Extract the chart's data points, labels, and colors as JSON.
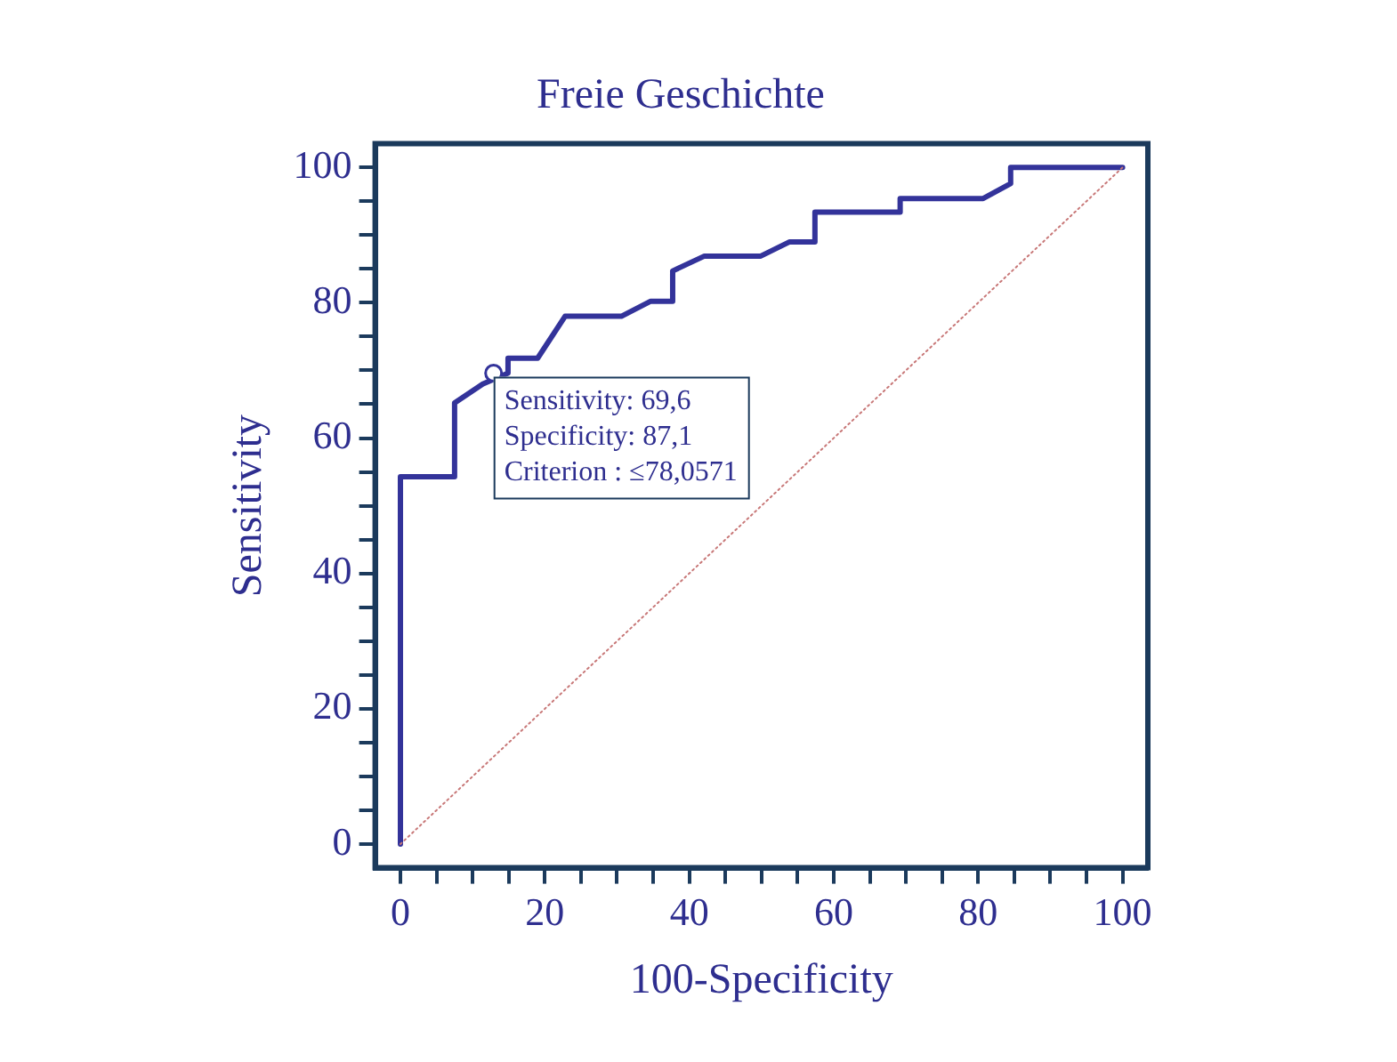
{
  "chart_data": {
    "type": "line",
    "title": "Freie Geschichte",
    "xlabel": "100-Specificity",
    "ylabel": "Sensitivity",
    "xlim": [
      -3.5,
      103.5
    ],
    "ylim": [
      -3.5,
      103.5
    ],
    "xticks": [
      0,
      {
        "value": 5,
        "label": null
      },
      {
        "value": 10,
        "label": null
      },
      {
        "value": 15,
        "label": null
      },
      20,
      {
        "value": 25,
        "label": null
      },
      {
        "value": 30,
        "label": null
      },
      {
        "value": 35,
        "label": null
      },
      40,
      {
        "value": 45,
        "label": null
      },
      {
        "value": 50,
        "label": null
      },
      {
        "value": 55,
        "label": null
      },
      60,
      {
        "value": 65,
        "label": null
      },
      {
        "value": 70,
        "label": null
      },
      {
        "value": 75,
        "label": null
      },
      80,
      {
        "value": 85,
        "label": null
      },
      {
        "value": 90,
        "label": null
      },
      {
        "value": 95,
        "label": null
      },
      100
    ],
    "yticks": [
      0,
      {
        "value": 5,
        "label": null
      },
      {
        "value": 10,
        "label": null
      },
      {
        "value": 15,
        "label": null
      },
      20,
      {
        "value": 25,
        "label": null
      },
      {
        "value": 30,
        "label": null
      },
      {
        "value": 35,
        "label": null
      },
      40,
      {
        "value": 45,
        "label": null
      },
      {
        "value": 50,
        "label": null
      },
      {
        "value": 55,
        "label": null
      },
      60,
      {
        "value": 65,
        "label": null
      },
      {
        "value": 70,
        "label": null
      },
      {
        "value": 75,
        "label": null
      },
      80,
      {
        "value": 85,
        "label": null
      },
      {
        "value": 90,
        "label": null
      },
      {
        "value": 95,
        "label": null
      },
      100
    ],
    "grid": false,
    "legend": false,
    "marker": "none",
    "series": [
      {
        "color": "#33339a",
        "x": [
          0,
          0,
          7.5,
          7.5,
          11.4,
          14.9,
          14.9,
          19,
          22.8,
          30.6,
          34.6,
          37.7,
          37.7,
          42.1,
          49.9,
          53.9,
          57.4,
          57.4,
          69.2,
          69.2,
          80.7,
          84.5,
          84.5,
          100
        ],
        "values": [
          0,
          54.3,
          54.3,
          65.2,
          68,
          69.6,
          71.8,
          71.8,
          78,
          78,
          80.2,
          80.2,
          84.7,
          86.9,
          86.9,
          89,
          89,
          93.4,
          93.4,
          95.4,
          95.4,
          97.6,
          100,
          100
        ]
      },
      {
        "type": "line",
        "color": "#c87878",
        "line_style": "dotted",
        "x": [
          0,
          100
        ],
        "values": [
          0,
          100
        ]
      },
      {
        "type": "scatter",
        "color": "#33339a",
        "marker": "circle",
        "x": [
          12.9
        ],
        "values": [
          69.6
        ]
      }
    ],
    "annotations": [
      {
        "text": "Sensitivity: 69,6\nSpecificity: 87,1\nCriterion : ≤78,0571",
        "x": 12.9,
        "y": 69.6
      }
    ]
  }
}
